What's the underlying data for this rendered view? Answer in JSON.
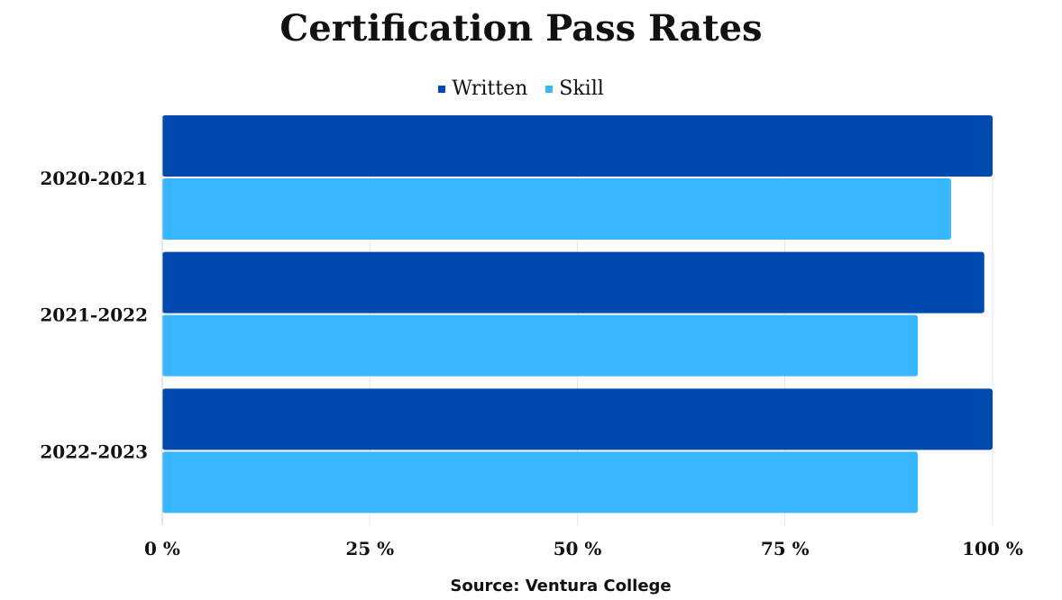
{
  "chart_data": {
    "type": "bar",
    "orientation": "horizontal",
    "title": "Certification Pass Rates",
    "categories": [
      "2020-2021",
      "2021-2022",
      "2022-2023"
    ],
    "series": [
      {
        "name": "Written",
        "values": [
          100,
          99,
          100
        ],
        "color": "#004aad"
      },
      {
        "name": "Skill",
        "values": [
          95,
          91,
          91
        ],
        "color": "#38b6ff"
      }
    ],
    "xlim": [
      0,
      100
    ],
    "x_ticks": [
      0,
      25,
      50,
      75,
      100
    ],
    "x_tick_labels": [
      "0 %",
      "25 %",
      "50 %",
      "75 %",
      "100 %"
    ],
    "grid": true,
    "legend": "top-center"
  },
  "source": "Source: Ventura College"
}
